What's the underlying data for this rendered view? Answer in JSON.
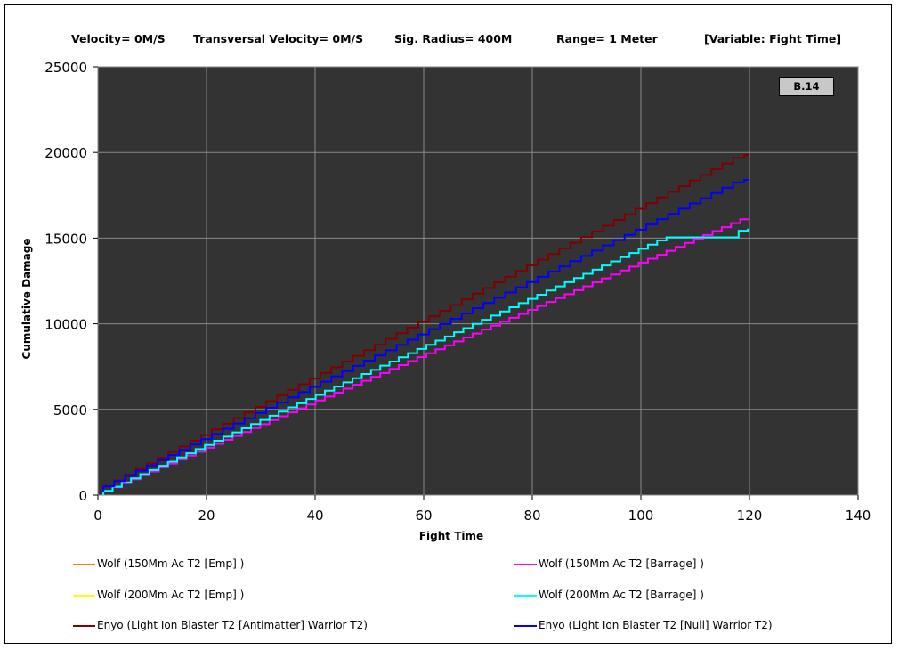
{
  "header": {
    "velocity": "Velocity= 0M/S",
    "transversal": "Transversal Velocity= 0M/S",
    "sig_radius": "Sig. Radius= 400M",
    "range": "Range= 1 Meter",
    "variable": "[Variable: Fight Time]"
  },
  "badge": "B.14",
  "colors": {
    "plot_background": "#333333",
    "grid": "#8a8a8a"
  },
  "chart_data": {
    "type": "line",
    "xlabel": "Fight Time",
    "ylabel": "Cumulative Damage",
    "xlim": [
      0,
      140
    ],
    "ylim": [
      0,
      25000
    ],
    "x_ticks": [
      "0",
      "20",
      "40",
      "60",
      "80",
      "100",
      "120",
      "140"
    ],
    "y_ticks": [
      "0",
      "5000",
      "10000",
      "15000",
      "20000",
      "25000"
    ],
    "grid": true,
    "legend_position": "bottom",
    "series": [
      {
        "name": "Wolf (150Mm Ac T2 [Emp] )",
        "color": "#ff8000",
        "x": [],
        "y": []
      },
      {
        "name": "Wolf (150Mm Ac T2 [Barrage] )",
        "color": "#ff00ff",
        "x": [
          1,
          120
        ],
        "y": [
          0,
          16100
        ],
        "step_interval": 1.7
      },
      {
        "name": "Wolf (200Mm Ac T2 [Emp] )",
        "color": "#ffff00",
        "x": [],
        "y": []
      },
      {
        "name": "Wolf (200Mm Ac T2 [Barrage] )",
        "color": "#00ffff",
        "x": [
          1,
          106,
          106,
          118,
          118,
          120
        ],
        "y": [
          0,
          15050,
          15050,
          15050,
          15050,
          15500
        ],
        "step_interval": 1.7
      },
      {
        "name": "Enyo (Light Ion Blaster T2 [Antimatter] Warrior T2)",
        "color": "#800000",
        "x": [
          1,
          120
        ],
        "y": [
          200,
          19850
        ],
        "step_interval": 2.0
      },
      {
        "name": "Enyo (Light Ion Blaster T2 [Null] Warrior T2)",
        "color": "#0000ff",
        "x": [
          1,
          120
        ],
        "y": [
          200,
          18400
        ],
        "step_interval": 2.0
      }
    ]
  }
}
